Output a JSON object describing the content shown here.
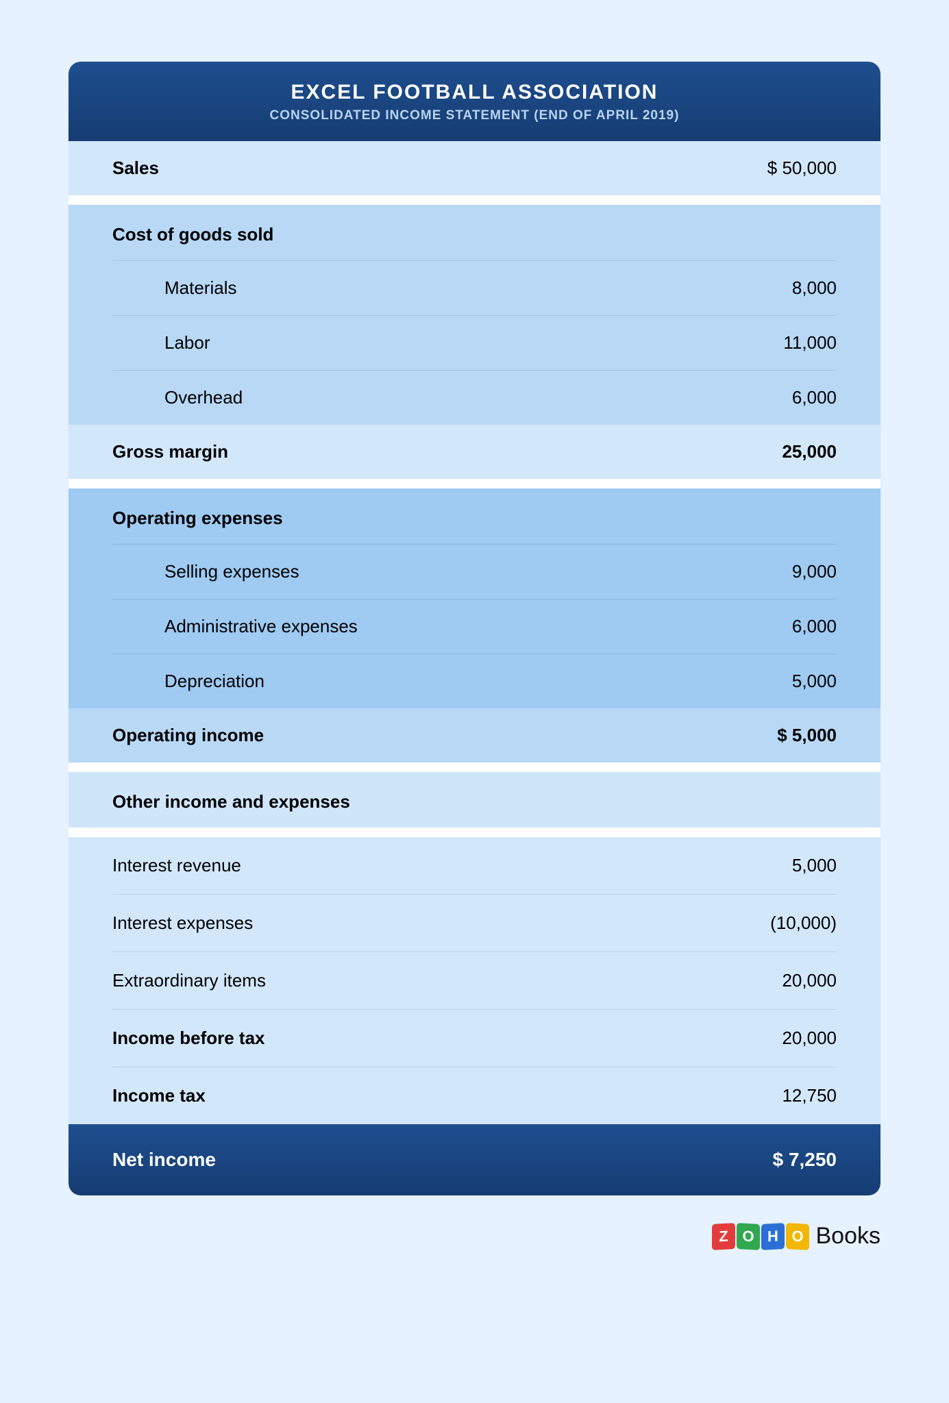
{
  "colors": {
    "page_bg": "#e6f2ff",
    "header_grad_top": "#1e4e8f",
    "header_grad_bottom": "#163d72",
    "band_lightest": "#d3e7fb",
    "band_light": "#b8d8f6",
    "band_mid": "#9fcaf2",
    "band_pale": "#cfe5fa",
    "divider": "rgba(0,0,0,0.10)",
    "text": "#111111",
    "header_sub": "#b8d4f0"
  },
  "typography": {
    "title_fontsize": 30,
    "subtitle_fontsize": 19,
    "row_fontsize": 26,
    "footer_fontsize": 28
  },
  "statement": {
    "title": "EXCEL FOOTBALL ASSOCIATION",
    "subtitle": "CONSOLIDATED INCOME STATEMENT (END OF APRIL 2019)",
    "sales": {
      "label": "Sales",
      "value": "$ 50,000"
    },
    "cogs": {
      "heading": "Cost of goods sold",
      "items": [
        {
          "label": "Materials",
          "value": "8,000"
        },
        {
          "label": "Labor",
          "value": "11,000"
        },
        {
          "label": "Overhead",
          "value": "6,000"
        }
      ]
    },
    "gross_margin": {
      "label": "Gross margin",
      "value": "25,000"
    },
    "opex": {
      "heading": "Operating expenses",
      "items": [
        {
          "label": "Selling expenses",
          "value": "9,000"
        },
        {
          "label": "Administrative expenses",
          "value": "6,000"
        },
        {
          "label": "Depreciation",
          "value": "5,000"
        }
      ]
    },
    "operating_income": {
      "label": "Operating income",
      "value": "$ 5,000"
    },
    "other": {
      "heading": "Other income and expenses",
      "items": [
        {
          "label": "Interest revenue",
          "value": "5,000",
          "bold": false
        },
        {
          "label": "Interest expenses",
          "value": "(10,000)",
          "bold": false
        },
        {
          "label": "Extraordinary items",
          "value": "20,000",
          "bold": false
        },
        {
          "label": "Income before tax",
          "value": "20,000",
          "bold": true
        },
        {
          "label": "Income tax",
          "value": "12,750",
          "bold": true
        }
      ]
    },
    "net_income": {
      "label": "Net income",
      "value": "$ 7,250"
    }
  },
  "logo": {
    "mark": [
      "Z",
      "O",
      "H",
      "O"
    ],
    "text": "Books"
  }
}
